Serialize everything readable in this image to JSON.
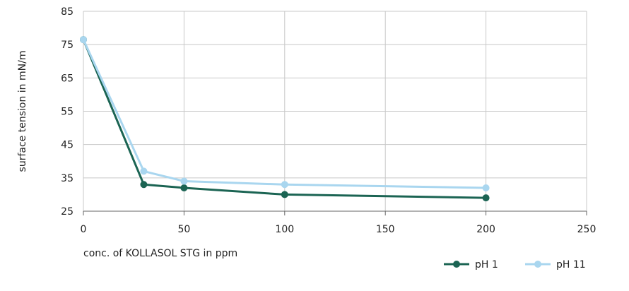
{
  "chart_data": {
    "type": "line",
    "title": "",
    "xlabel": "conc. of KOLLASOL STG in ppm",
    "ylabel": "surface tension in mN/m",
    "xlim": [
      0,
      250
    ],
    "ylim": [
      25,
      85
    ],
    "xticks": [
      0,
      50,
      100,
      150,
      200,
      250
    ],
    "yticks": [
      25,
      35,
      45,
      55,
      65,
      75,
      85
    ],
    "grid": true,
    "legend_position": "bottom-right",
    "series": [
      {
        "name": "pH 1",
        "color": "#1b6453",
        "x": [
          0,
          30,
          50,
          100,
          200
        ],
        "y": [
          76.5,
          33,
          32,
          30,
          29
        ]
      },
      {
        "name": "pH 11",
        "color": "#a9d6ef",
        "x": [
          0,
          30,
          50,
          100,
          200
        ],
        "y": [
          76.5,
          37,
          34,
          33,
          32
        ]
      }
    ]
  }
}
